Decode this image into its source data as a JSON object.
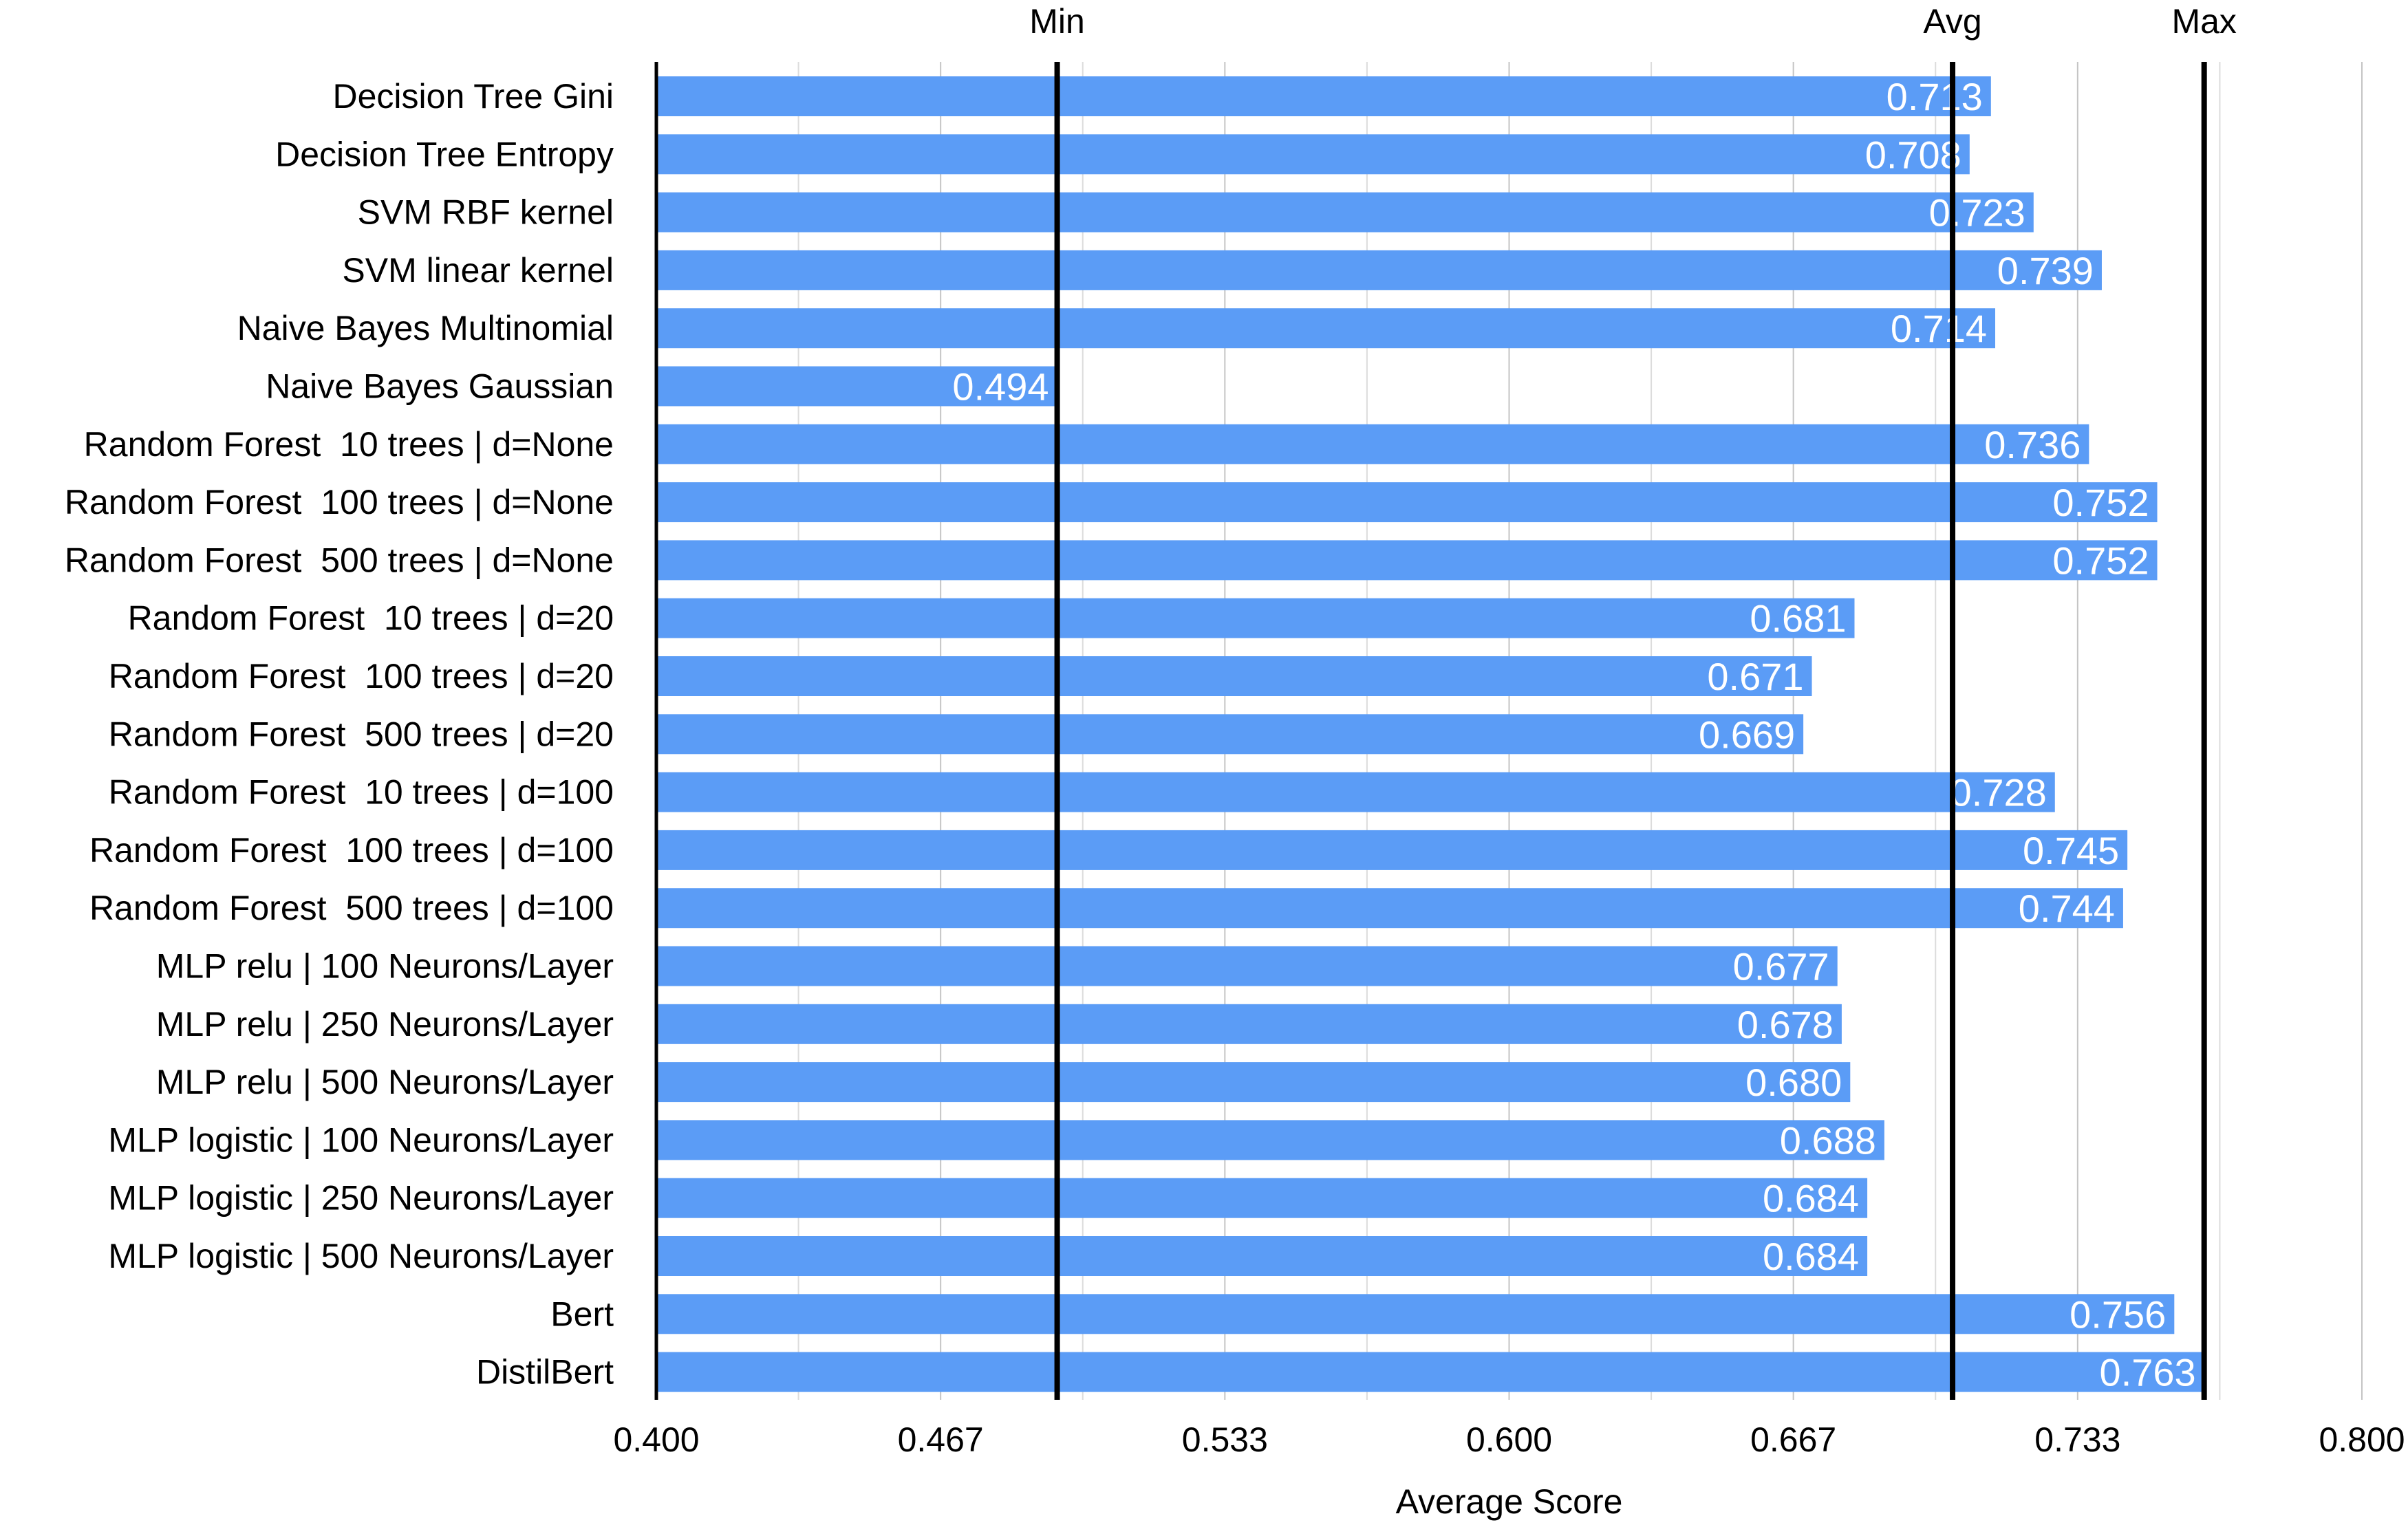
{
  "chart_data": {
    "type": "bar",
    "orientation": "horizontal",
    "categories": [
      "Decision Tree Gini",
      "Decision Tree Entropy",
      "SVM RBF kernel",
      "SVM linear kernel",
      "Naive Bayes Multinomial",
      "Naive Bayes Gaussian",
      "Random Forest  10 trees | d=None",
      "Random Forest  100 trees | d=None",
      "Random Forest  500 trees | d=None",
      "Random Forest  10 trees | d=20",
      "Random Forest  100 trees | d=20",
      "Random Forest  500 trees | d=20",
      "Random Forest  10 trees | d=100",
      "Random Forest  100 trees | d=100",
      "Random Forest  500 trees | d=100",
      "MLP relu | 100 Neurons/Layer",
      "MLP relu | 250 Neurons/Layer",
      "MLP relu | 500 Neurons/Layer",
      "MLP logistic | 100 Neurons/Layer",
      "MLP logistic | 250 Neurons/Layer",
      "MLP logistic | 500 Neurons/Layer",
      "Bert",
      "DistilBert"
    ],
    "values": [
      0.713,
      0.708,
      0.723,
      0.739,
      0.714,
      0.494,
      0.736,
      0.752,
      0.752,
      0.681,
      0.671,
      0.669,
      0.728,
      0.745,
      0.744,
      0.677,
      0.678,
      0.68,
      0.688,
      0.684,
      0.684,
      0.756,
      0.763
    ],
    "value_labels": [
      "0.713",
      "0.708",
      "0.723",
      "0.739",
      "0.714",
      "0.494",
      "0.736",
      "0.752",
      "0.752",
      "0.681",
      "0.671",
      "0.669",
      "0.728",
      "0.745",
      "0.744",
      "0.677",
      "0.678",
      "0.680",
      "0.688",
      "0.684",
      "0.684",
      "0.756",
      "0.763"
    ],
    "reference_lines": [
      {
        "label": "Min",
        "value": 0.494
      },
      {
        "label": "Avg",
        "value": 0.704
      },
      {
        "label": "Max",
        "value": 0.763
      }
    ],
    "xlabel": "Average Score",
    "ylabel": "",
    "xlim": [
      0.4,
      0.8
    ],
    "x_ticks": [
      "0.400",
      "0.467",
      "0.533",
      "0.600",
      "0.667",
      "0.733",
      "0.800"
    ],
    "grid": "vertical",
    "bar_color": "#5b9cf6"
  }
}
